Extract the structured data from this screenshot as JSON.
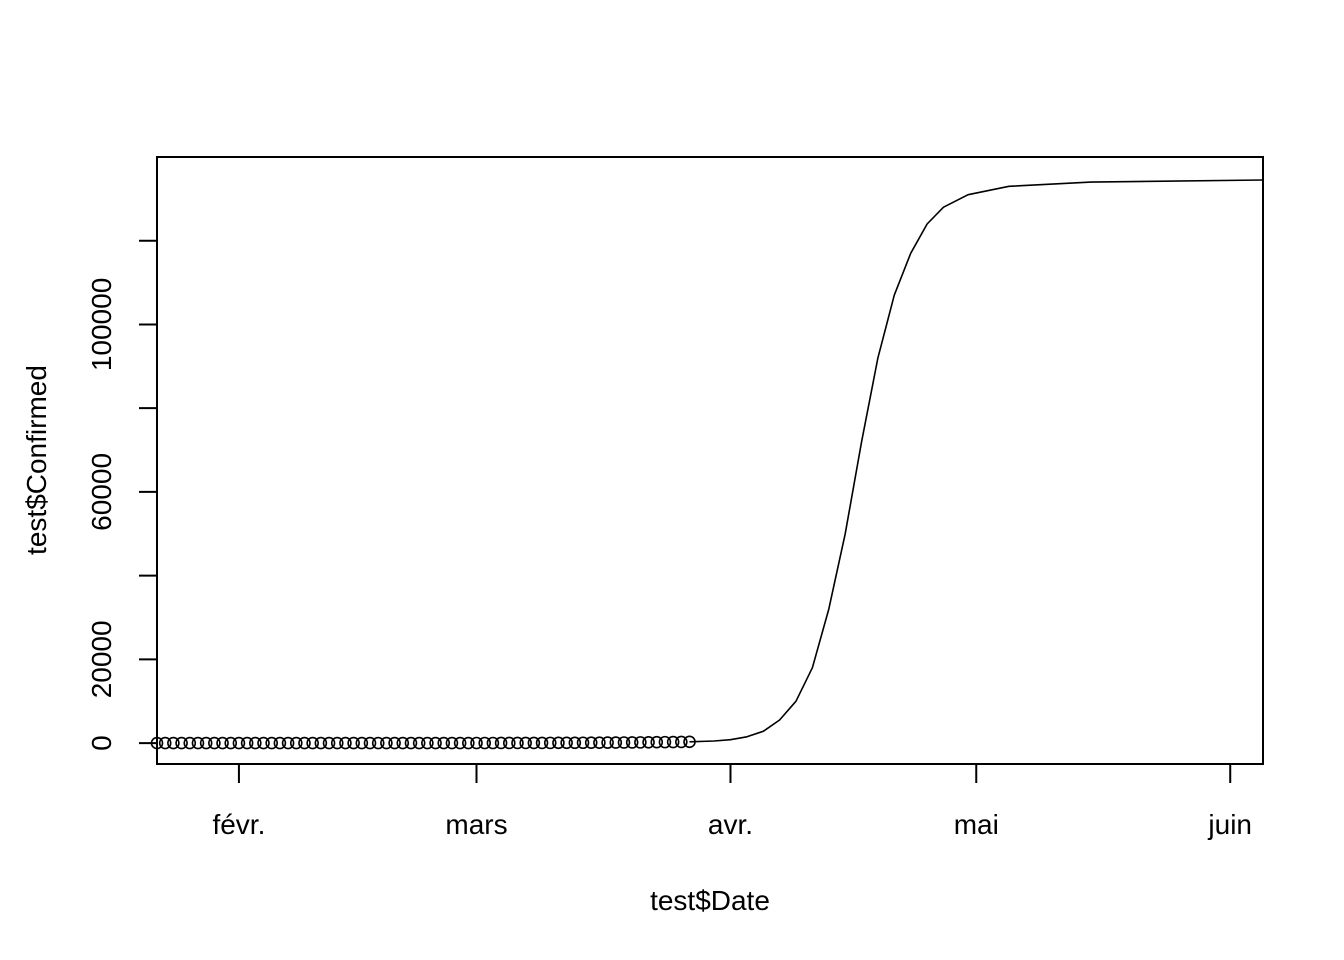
{
  "chart_data": {
    "type": "scatter",
    "xlabel": "test$Date",
    "ylabel": "test$Confirmed",
    "x_range": [
      "2020-01-22",
      "2020-06-05"
    ],
    "ylim": [
      -5000,
      140000
    ],
    "x_ticks": [
      {
        "date": "2020-02-01",
        "label": "févr."
      },
      {
        "date": "2020-03-01",
        "label": "mars"
      },
      {
        "date": "2020-04-01",
        "label": "avr."
      },
      {
        "date": "2020-05-01",
        "label": "mai"
      },
      {
        "date": "2020-06-01",
        "label": "juin"
      }
    ],
    "y_ticks": [
      {
        "value": 0,
        "label": "0"
      },
      {
        "value": 20000,
        "label": "20000"
      },
      {
        "value": 40000,
        "label": ""
      },
      {
        "value": 60000,
        "label": "60000"
      },
      {
        "value": 80000,
        "label": ""
      },
      {
        "value": 100000,
        "label": "100000"
      },
      {
        "value": 120000,
        "label": ""
      }
    ],
    "grid": false,
    "series": [
      {
        "style": "points",
        "marker": "open-circle",
        "x_start": "2020-01-22",
        "x_end": "2020-03-27",
        "y_min": 0,
        "y_max": 300,
        "approx_y": 0
      },
      {
        "style": "line",
        "points": [
          {
            "x": "2020-03-27",
            "y": 300
          },
          {
            "x": "2020-03-30",
            "y": 500
          },
          {
            "x": "2020-04-01",
            "y": 800
          },
          {
            "x": "2020-04-03",
            "y": 1500
          },
          {
            "x": "2020-04-05",
            "y": 2800
          },
          {
            "x": "2020-04-07",
            "y": 5500
          },
          {
            "x": "2020-04-09",
            "y": 10000
          },
          {
            "x": "2020-04-11",
            "y": 18000
          },
          {
            "x": "2020-04-13",
            "y": 32000
          },
          {
            "x": "2020-04-15",
            "y": 50000
          },
          {
            "x": "2020-04-17",
            "y": 72000
          },
          {
            "x": "2020-04-19",
            "y": 92000
          },
          {
            "x": "2020-04-21",
            "y": 107000
          },
          {
            "x": "2020-04-23",
            "y": 117000
          },
          {
            "x": "2020-04-25",
            "y": 124000
          },
          {
            "x": "2020-04-27",
            "y": 128000
          },
          {
            "x": "2020-04-30",
            "y": 131000
          },
          {
            "x": "2020-05-05",
            "y": 133000
          },
          {
            "x": "2020-05-15",
            "y": 134000
          },
          {
            "x": "2020-06-05",
            "y": 134500
          }
        ]
      }
    ]
  }
}
